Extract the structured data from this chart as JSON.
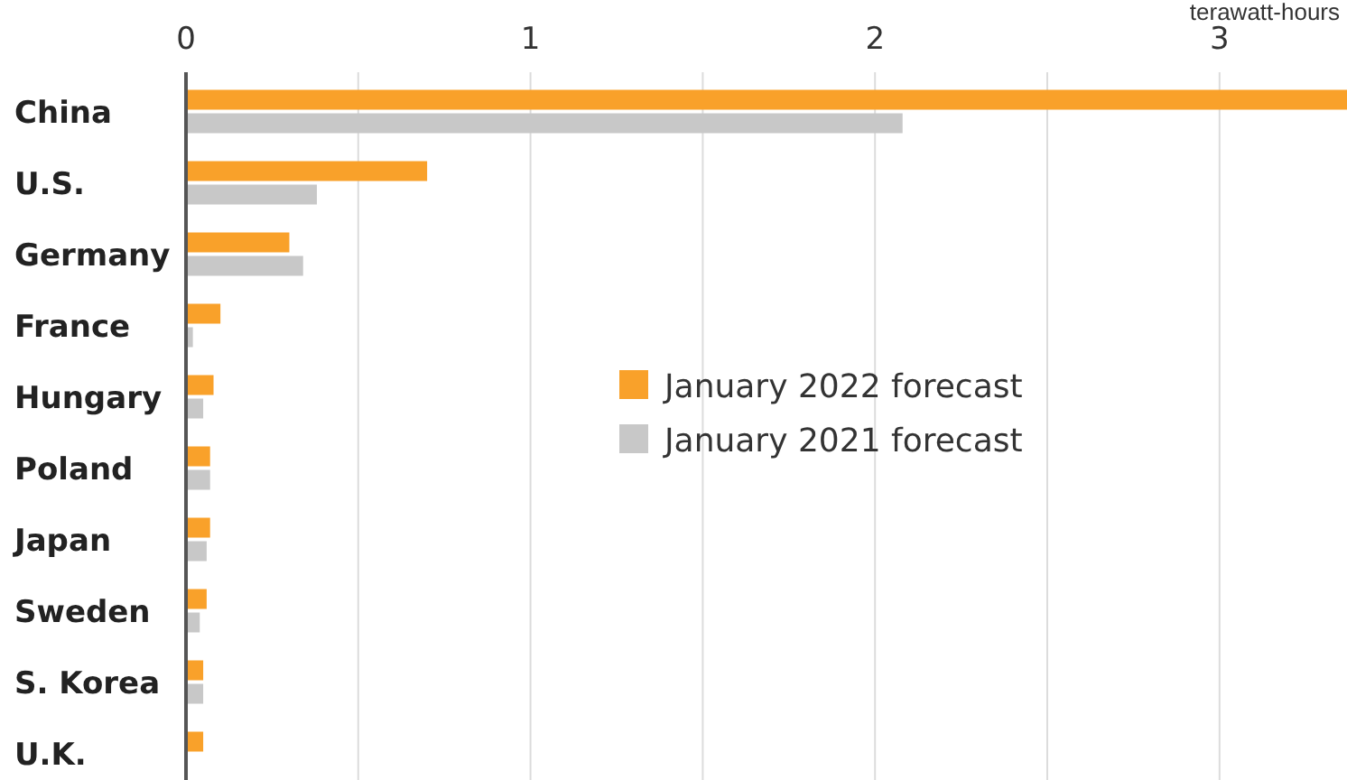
{
  "chart_data": {
    "type": "bar",
    "orientation": "horizontal",
    "categories": [
      "China",
      "U.S.",
      "Germany",
      "France",
      "Hungary",
      "Poland",
      "Japan",
      "Sweden",
      "S. Korea",
      "U.K."
    ],
    "series": [
      {
        "name": "January 2022 forecast",
        "color": "#f9a12a",
        "values": [
          3.37,
          0.7,
          0.3,
          0.1,
          0.08,
          0.07,
          0.07,
          0.06,
          0.05,
          0.05
        ]
      },
      {
        "name": "January 2021 forecast",
        "color": "#c8c8c8",
        "values": [
          2.08,
          0.38,
          0.34,
          0.02,
          0.05,
          0.07,
          0.06,
          0.04,
          0.05,
          null
        ]
      }
    ],
    "xlim": [
      0,
      3.37
    ],
    "xticks": [
      0,
      {
        "value": 0.5,
        "label": null
      },
      1,
      {
        "value": 1.5,
        "label": null
      },
      2,
      {
        "value": 2.5,
        "label": null
      },
      3
    ],
    "xlabel": "terawatt-hours",
    "grid": true,
    "legend": "right"
  }
}
